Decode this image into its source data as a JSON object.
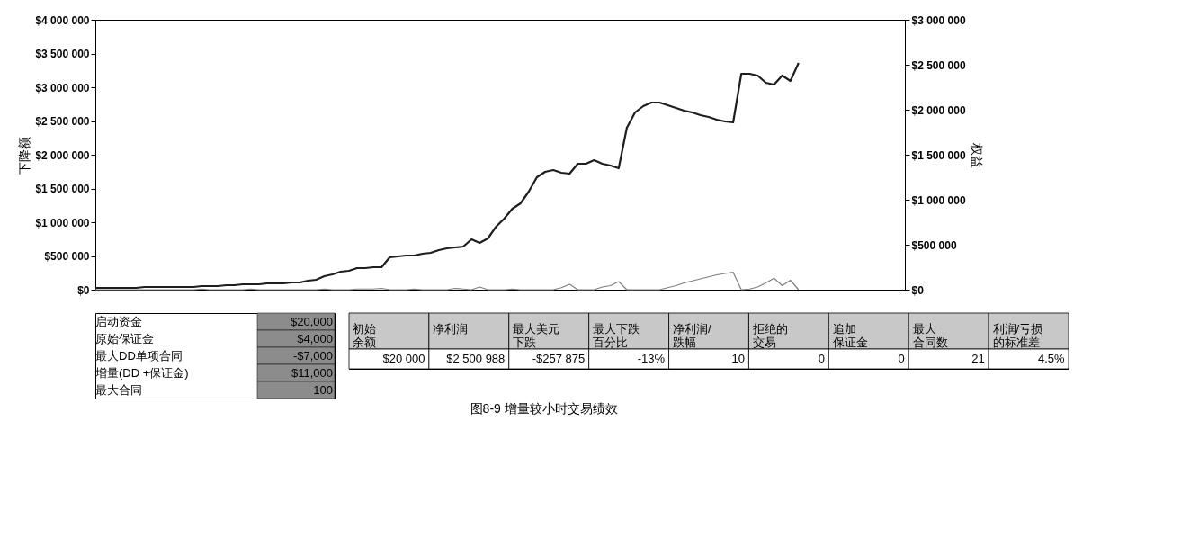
{
  "chart_data": [
    {
      "type": "line",
      "title": "图8-9 增量较小时交易绩效",
      "ylabel": "下降额",
      "y2label": "权益",
      "categories": [
        null,
        null,
        null,
        null,
        null,
        null,
        null,
        null,
        null,
        null,
        null,
        null,
        null,
        null,
        null,
        null,
        null,
        null,
        null,
        null,
        null,
        null,
        null,
        null,
        null,
        null,
        null,
        null,
        null,
        null,
        null,
        null,
        null,
        null,
        null,
        null,
        null,
        null,
        null,
        null,
        null,
        null,
        null,
        null,
        null,
        null,
        null,
        null,
        null,
        null,
        null,
        null,
        null,
        null,
        null,
        null,
        null,
        null,
        null,
        null,
        null,
        null,
        null,
        null,
        null,
        null,
        null,
        null,
        null,
        null,
        null,
        null,
        null,
        null,
        null,
        null,
        null,
        null,
        null,
        null,
        null,
        null,
        null,
        null,
        null,
        null,
        null,
        null,
        null,
        null,
        null,
        null,
        null,
        null,
        null,
        null,
        null,
        null,
        null,
        null
      ],
      "series": [
        {
          "color": "#808080",
          "values": [
            0,
            0,
            0,
            0,
            0,
            0,
            0,
            0,
            0,
            0,
            0,
            0,
            0,
            10000,
            0,
            0,
            0,
            0,
            0,
            10000,
            0,
            0,
            0,
            0,
            0,
            0,
            0,
            0,
            10000,
            0,
            0,
            0,
            10000,
            10000,
            10000,
            20000,
            0,
            0,
            0,
            10000,
            0,
            0,
            0,
            0,
            20000,
            10000,
            0,
            40000,
            0,
            0,
            0,
            10000,
            0,
            0,
            0,
            0,
            0,
            30000,
            80000,
            0,
            0,
            0,
            40000,
            60000,
            120000,
            0,
            0,
            0,
            0,
            0,
            30000,
            60000,
            100000,
            130000,
            160000,
            190000,
            220000,
            240000,
            257875,
            0,
            10000,
            40000,
            100000,
            170000,
            60000,
            140000,
            0,
            null,
            null,
            null,
            null,
            null,
            null,
            null,
            null,
            null,
            null,
            null,
            null,
            null
          ]
        },
        {
          "color": "#1e1e1e",
          "axis": "y2",
          "values": [
            20000,
            20000,
            20000,
            20000,
            20000,
            20000,
            30000,
            30000,
            30000,
            30000,
            30000,
            30000,
            30000,
            40000,
            40000,
            40000,
            50000,
            50000,
            60000,
            60000,
            60000,
            70000,
            70000,
            70000,
            80000,
            80000,
            100000,
            110000,
            150000,
            170000,
            200000,
            210000,
            240000,
            240000,
            250000,
            250000,
            360000,
            370000,
            380000,
            380000,
            400000,
            410000,
            440000,
            460000,
            470000,
            480000,
            560000,
            520000,
            570000,
            700000,
            790000,
            900000,
            960000,
            1090000,
            1250000,
            1310000,
            1330000,
            1300000,
            1290000,
            1400000,
            1400000,
            1440000,
            1400000,
            1380000,
            1350000,
            1800000,
            1970000,
            2040000,
            2080000,
            2080000,
            2050000,
            2020000,
            1990000,
            1970000,
            1940000,
            1920000,
            1890000,
            1870000,
            1860000,
            2400000,
            2400000,
            2380000,
            2300000,
            2280000,
            2380000,
            2320000,
            2520000,
            null,
            null,
            null,
            null,
            null,
            null,
            null,
            null,
            null,
            null,
            null,
            null,
            null
          ]
        }
      ],
      "ylim": [
        0,
        4000000
      ],
      "yticks": [
        {
          "value": 0,
          "label": "$0"
        },
        {
          "value": 500000,
          "label": "$500 000"
        },
        {
          "value": 1000000,
          "label": "$1 000 000"
        },
        {
          "value": 1500000,
          "label": "$1 500 000"
        },
        {
          "value": 2000000,
          "label": "$2 000 000"
        },
        {
          "value": 2500000,
          "label": "$2 500 000"
        },
        {
          "value": 3000000,
          "label": "$3 000 000"
        },
        {
          "value": 3500000,
          "label": "$3 500 000"
        },
        {
          "value": 4000000,
          "label": "$4 000 000"
        }
      ],
      "y2lim": [
        0,
        3000000
      ],
      "y2ticks": [
        {
          "value": 0,
          "label": "$0"
        },
        {
          "value": 500000,
          "label": "$500 000"
        },
        {
          "value": 1000000,
          "label": "$1 000 000"
        },
        {
          "value": 1500000,
          "label": "$1 500 000"
        },
        {
          "value": 2000000,
          "label": "$2 000 000"
        },
        {
          "value": 2500000,
          "label": "$2 500 000"
        },
        {
          "value": 3000000,
          "label": "$3 000 000"
        }
      ],
      "tick_labels": "y",
      "grid": false
    },
    {
      "type": "other",
      "color": "#8c8c8c",
      "categories": [
        "启动资金",
        "原始保证金",
        "最大DD单项合同",
        "增量(DD +保证金)",
        "最大合同"
      ],
      "value_labels": [
        "$20,000",
        "$4,000",
        "-$7,000",
        "$11,000",
        "100"
      ]
    },
    {
      "type": "other",
      "color": "#c8c8c8",
      "categories": [
        "初始余额",
        "净利润",
        "最大美元下跌",
        "最大下跌百分比",
        "净利润/跌幅",
        "拒绝的交易",
        "追加保证金",
        "最大合同数",
        "利润/亏损的标准差"
      ],
      "value_labels": [
        "$20 000",
        "$2 500 988",
        "-$257 875",
        "-13%",
        "10",
        "0",
        "0",
        "21",
        "4.5%"
      ]
    }
  ]
}
